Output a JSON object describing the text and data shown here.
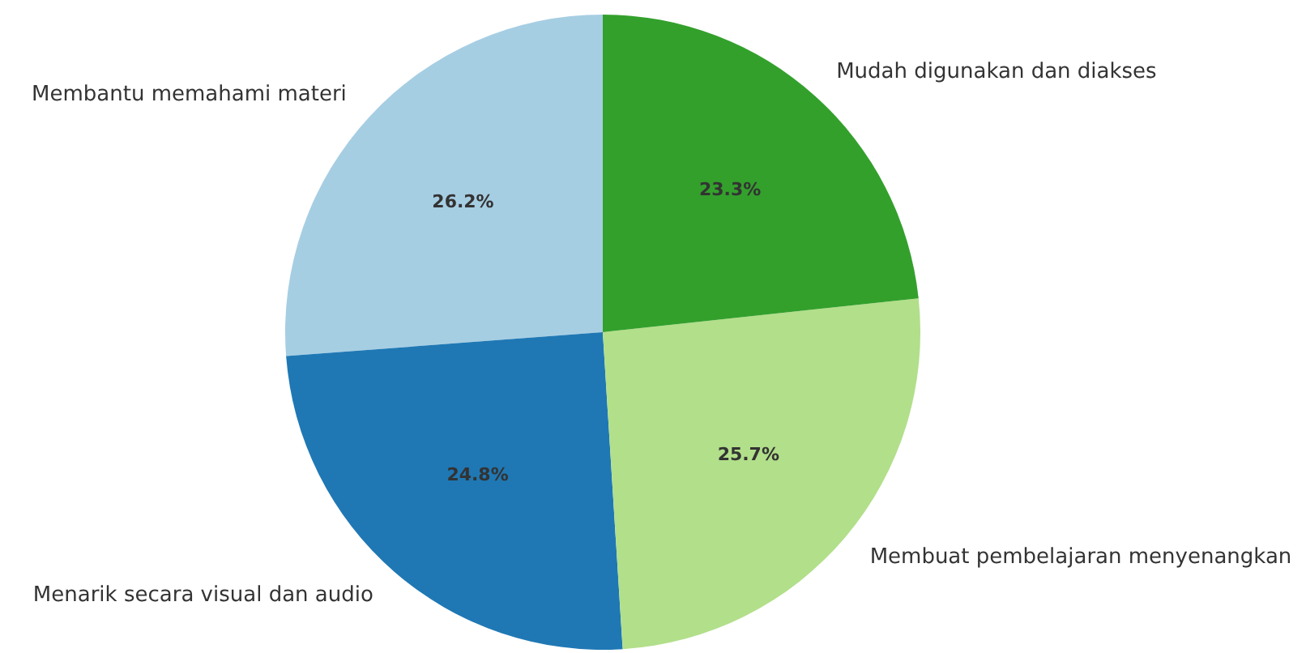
{
  "chart_data": {
    "type": "pie",
    "categories": [
      "Membantu memahami materi",
      "Menarik secara visual dan audio",
      "Membuat pembelajaran menyenangkan",
      "Mudah digunakan dan diakses"
    ],
    "values": [
      26.2,
      24.8,
      25.7,
      23.3
    ],
    "colors": [
      "#a6cee3",
      "#1f78b4",
      "#b2df8a",
      "#33a02c"
    ],
    "value_labels": [
      "26.2%",
      "24.8%",
      "25.7%",
      "23.3%"
    ]
  }
}
